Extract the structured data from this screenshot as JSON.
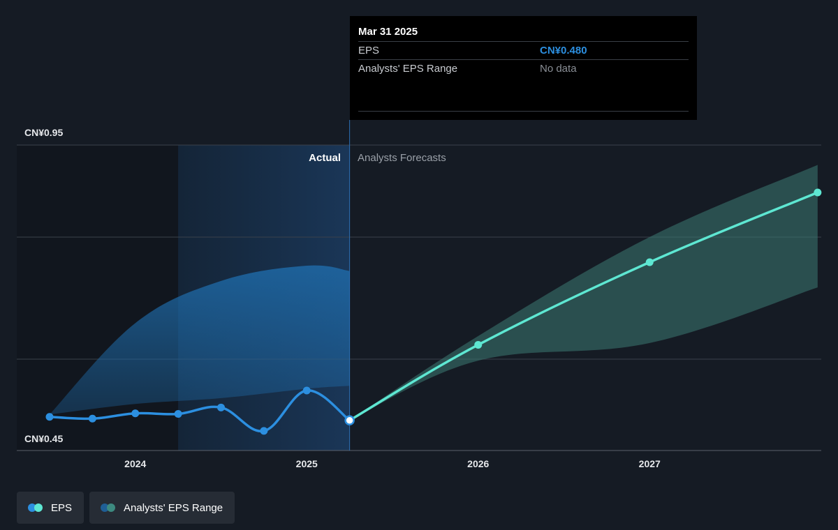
{
  "colors": {
    "background": "#151b24",
    "eps_actual": "#2c8fe0",
    "eps_forecast": "#5ee7d2",
    "actual_range_fill": "#1f6fb0",
    "forecast_range_fill": "#3d7a72",
    "grid": "#3a414b"
  },
  "tooltip": {
    "date": "Mar 31 2025",
    "rows": [
      {
        "label": "EPS",
        "value": "CN¥0.480"
      },
      {
        "label": "Analysts' EPS Range",
        "value": "No data"
      }
    ]
  },
  "regions": {
    "actual_label": "Actual",
    "forecast_label": "Analysts Forecasts"
  },
  "y_axis": {
    "top_label": "CN¥0.95",
    "bottom_label": "CN¥0.45"
  },
  "legend": [
    {
      "label": "EPS",
      "icon": "eps-dots-icon"
    },
    {
      "label": "Analysts' EPS Range",
      "icon": "range-dots-icon"
    }
  ],
  "chart_data": {
    "type": "line",
    "title": "",
    "xlabel": "",
    "ylabel": "",
    "x_ticks": [
      "2024",
      "2025",
      "2026",
      "2027"
    ],
    "x_tick_values": [
      2024.0,
      2025.0,
      2026.0,
      2027.0
    ],
    "xlim": [
      2023.3,
      2027.98
    ],
    "ylim": [
      0.45,
      0.95
    ],
    "y_tick_labels": [
      {
        "value": 0.95,
        "label": "CN¥0.95"
      },
      {
        "value": 0.45,
        "label": "CN¥0.45"
      }
    ],
    "grid": true,
    "divider_x": 2025.25,
    "highlight_band": [
      2024.25,
      2025.25
    ],
    "series": [
      {
        "name": "EPS",
        "kind": "actual",
        "points": [
          {
            "x": 2023.5,
            "y": 0.486
          },
          {
            "x": 2023.75,
            "y": 0.483
          },
          {
            "x": 2024.0,
            "y": 0.492
          },
          {
            "x": 2024.25,
            "y": 0.491
          },
          {
            "x": 2024.5,
            "y": 0.502
          },
          {
            "x": 2024.75,
            "y": 0.462
          },
          {
            "x": 2025.0,
            "y": 0.531
          },
          {
            "x": 2025.25,
            "y": 0.48
          }
        ]
      },
      {
        "name": "EPS",
        "kind": "forecast",
        "points": [
          {
            "x": 2025.25,
            "y": 0.48
          },
          {
            "x": 2026.0,
            "y": 0.609
          },
          {
            "x": 2027.0,
            "y": 0.75
          },
          {
            "x": 2027.98,
            "y": 0.869
          }
        ]
      }
    ],
    "ranges": [
      {
        "name": "Analysts' EPS Range",
        "kind": "actual",
        "upper": [
          [
            2023.5,
            0.49
          ],
          [
            2024.0,
            0.646
          ],
          [
            2024.5,
            0.718
          ],
          [
            2025.0,
            0.744
          ],
          [
            2025.25,
            0.735
          ]
        ],
        "lower": [
          [
            2023.5,
            0.49
          ],
          [
            2024.0,
            0.508
          ],
          [
            2024.5,
            0.518
          ],
          [
            2025.0,
            0.534
          ],
          [
            2025.25,
            0.539
          ]
        ]
      },
      {
        "name": "Analysts' EPS Range",
        "kind": "forecast",
        "upper": [
          [
            2025.25,
            0.48
          ],
          [
            2026.0,
            0.624
          ],
          [
            2027.0,
            0.793
          ],
          [
            2027.98,
            0.916
          ]
        ],
        "lower": [
          [
            2025.25,
            0.48
          ],
          [
            2026.0,
            0.582
          ],
          [
            2027.0,
            0.612
          ],
          [
            2027.98,
            0.707
          ]
        ]
      }
    ]
  }
}
